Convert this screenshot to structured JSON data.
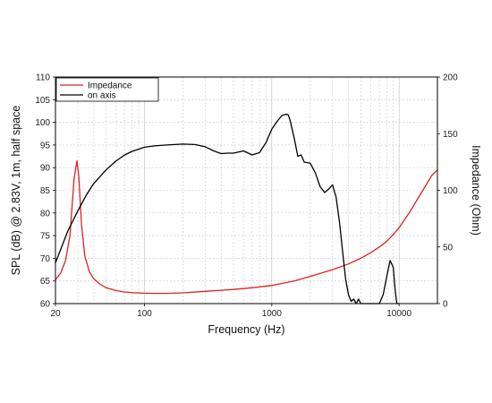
{
  "chart_data": {
    "type": "line",
    "xlabel": "Frequency (Hz)",
    "ylabel": "SPL (dB) @ 2.83V, 1m, half space",
    "y2label": "Impedance (Ohm)",
    "xscale": "log",
    "xlim": [
      20,
      20000
    ],
    "ylim": [
      60,
      110
    ],
    "y2lim": [
      0,
      200
    ],
    "x_tick_labels": [
      "20",
      "100",
      "1000",
      "10000"
    ],
    "x_ticks": [
      20,
      100,
      1000,
      10000
    ],
    "y_ticks": [
      60,
      65,
      70,
      75,
      80,
      85,
      90,
      95,
      100,
      105,
      110
    ],
    "y2_ticks": [
      0,
      50,
      100,
      150,
      200
    ],
    "grid": true,
    "legend_position": "top-left",
    "series": [
      {
        "name": "Impedance",
        "axis": "right",
        "color": "#e02020",
        "x": [
          20,
          22,
          24,
          26,
          28,
          29.5,
          30.5,
          32,
          34,
          37,
          40,
          45,
          50,
          60,
          70,
          85,
          100,
          120,
          150,
          200,
          300,
          500,
          700,
          1000,
          1500,
          2000,
          3000,
          4000,
          5000,
          6000,
          7000,
          8000,
          9000,
          10000,
          12000,
          15000,
          18000,
          20000
        ],
        "y": [
          21,
          27,
          38,
          60,
          110,
          126,
          112,
          70,
          42,
          28,
          22,
          17,
          14,
          11.5,
          10.2,
          9.5,
          9.2,
          9.0,
          9.0,
          9.5,
          10.8,
          12.5,
          14,
          16,
          20,
          24,
          30,
          35,
          40,
          45,
          50,
          55,
          61,
          67,
          80,
          98,
          113,
          118
        ]
      },
      {
        "name": "on axis",
        "axis": "left",
        "color": "#000000",
        "x": [
          20,
          25,
          30,
          35,
          40,
          50,
          60,
          70,
          80,
          100,
          120,
          150,
          200,
          250,
          300,
          350,
          400,
          450,
          500,
          600,
          700,
          800,
          900,
          1000,
          1100,
          1200,
          1300,
          1350,
          1400,
          1500,
          1600,
          1700,
          1800,
          2000,
          2200,
          2400,
          2600,
          2800,
          3000,
          3200,
          3400,
          3600,
          3800,
          4000,
          4200,
          4400,
          4600,
          4800,
          5000,
          7000,
          7500,
          8000,
          8500,
          9000,
          9300,
          9600,
          10000
        ],
        "y": [
          69,
          76,
          80.5,
          84,
          86.5,
          89.5,
          91.5,
          92.8,
          93.6,
          94.5,
          94.8,
          95,
          95.2,
          95.1,
          94.6,
          93.7,
          93.1,
          93.2,
          93.2,
          93.7,
          92.8,
          93.3,
          95.5,
          98.5,
          100.2,
          101.5,
          101.8,
          101.6,
          100.2,
          96.5,
          92.5,
          92.8,
          91.2,
          91,
          88.8,
          85.8,
          84.5,
          85.3,
          86.2,
          83.5,
          78,
          71.5,
          65.5,
          62,
          60.5,
          61,
          60,
          61,
          60,
          60,
          62,
          66,
          69.5,
          68,
          63,
          60,
          60
        ]
      }
    ]
  }
}
